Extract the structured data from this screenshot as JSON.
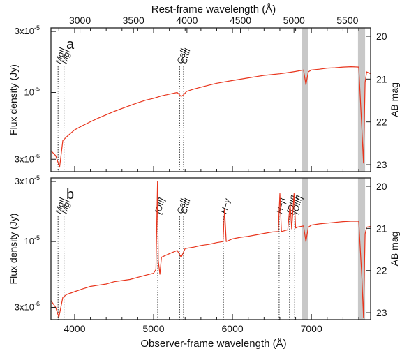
{
  "chart_data": [
    {
      "type": "line",
      "panel_label": "a",
      "xlabel": "Observer-frame wavelength (Å)",
      "x2label": "Rest-frame wavelength (Å)",
      "ylabel": "Flux density (Jy)",
      "y2label": "AB mag",
      "xlim": [
        3700,
        7750
      ],
      "x2_ticks": [
        3000,
        3500,
        4000,
        4500,
        5000,
        5500
      ],
      "x2_tick_labels": [
        "3000",
        "3500",
        "4000",
        "4500",
        "5000",
        "5500"
      ],
      "rest_to_observed_factor": 1.3558,
      "y_scale": "log",
      "ylim": [
        2.4e-06,
        3.2e-05
      ],
      "y_tick_labels": [
        {
          "value": 3e-05,
          "base": "3x10",
          "exp": "-5"
        },
        {
          "value": 1e-05,
          "base": "10",
          "exp": "-5"
        },
        {
          "value": 3e-06,
          "base": "3x10",
          "exp": "-6"
        }
      ],
      "y2_ticks": [
        "20",
        "21",
        "22",
        "23"
      ],
      "series": [
        {
          "color": "#e8341c",
          "x": [
            3700,
            3760,
            3810,
            3850,
            3900,
            3950,
            4000,
            4100,
            4200,
            4300,
            4400,
            4500,
            4600,
            4700,
            4800,
            4900,
            5000,
            5100,
            5200,
            5300,
            5350,
            5380,
            5420,
            5500,
            5600,
            5700,
            5800,
            5900,
            6000,
            6100,
            6200,
            6300,
            6400,
            6500,
            6600,
            6700,
            6800,
            6900,
            6930,
            6960,
            7000,
            7100,
            7200,
            7300,
            7400,
            7500,
            7600,
            7640,
            7660,
            7680,
            7700,
            7750
          ],
          "y": [
            3.5e-06,
            3.2e-06,
            2.6e-06,
            4.2e-06,
            4.5e-06,
            4.8e-06,
            5.1e-06,
            5.5e-06,
            5.9e-06,
            6.3e-06,
            6.7e-06,
            7.1e-06,
            7.5e-06,
            7.9e-06,
            8.3e-06,
            8.7e-06,
            9e-06,
            9.4e-06,
            9.7e-06,
            1e-05,
            9.3e-06,
            9.6e-06,
            1.02e-05,
            1.06e-05,
            1.1e-05,
            1.14e-05,
            1.18e-05,
            1.21e-05,
            1.24e-05,
            1.27e-05,
            1.3e-05,
            1.33e-05,
            1.36e-05,
            1.38e-05,
            1.4e-05,
            1.43e-05,
            1.46e-05,
            1.5e-05,
            1.15e-05,
            1.45e-05,
            1.5e-05,
            1.52e-05,
            1.55e-05,
            1.56e-05,
            1.58e-05,
            1.59e-05,
            1.58e-05,
            5e-06,
            2.8e-06,
            1.2e-05,
            1.45e-05,
            1.4e-05
          ]
        }
      ],
      "shaded_bands": [
        [
          6880,
          6960
        ],
        [
          7590,
          7680
        ]
      ],
      "lines": [
        {
          "label": "MgII",
          "x": 3790
        },
        {
          "label": "MgI",
          "x": 3865
        },
        {
          "label": "CaII",
          "x": 5330
        },
        {
          "label": "CaII",
          "x": 5380
        }
      ]
    },
    {
      "type": "line",
      "panel_label": "b",
      "xlabel": "Observer-frame wavelength (Å)",
      "ylabel": "Flux density (Jy)",
      "y2label": "AB mag",
      "xlim": [
        3700,
        7750
      ],
      "x_ticks": [
        4000,
        5000,
        6000,
        7000
      ],
      "x_tick_labels": [
        "4000",
        "5000",
        "6000",
        "7000"
      ],
      "y_scale": "log",
      "ylim": [
        2.4e-06,
        3.2e-05
      ],
      "y_tick_labels": [
        {
          "value": 3e-05,
          "base": "3x10",
          "exp": "-5"
        },
        {
          "value": 1e-05,
          "base": "10",
          "exp": "-5"
        },
        {
          "value": 3e-06,
          "base": "3x10",
          "exp": "-6"
        }
      ],
      "y2_ticks": [
        "20",
        "21",
        "22",
        "23"
      ],
      "series": [
        {
          "color": "#e8341c",
          "x": [
            3700,
            3760,
            3800,
            3850,
            3900,
            3950,
            4000,
            4100,
            4200,
            4300,
            4400,
            4500,
            4600,
            4700,
            4800,
            4900,
            5000,
            5030,
            5050,
            5060,
            5080,
            5100,
            5200,
            5300,
            5350,
            5400,
            5500,
            5600,
            5700,
            5800,
            5880,
            5900,
            5920,
            6000,
            6100,
            6200,
            6300,
            6400,
            6500,
            6580,
            6600,
            6620,
            6700,
            6730,
            6750,
            6780,
            6800,
            6820,
            6900,
            6930,
            6960,
            7000,
            7100,
            7200,
            7300,
            7400,
            7500,
            7600,
            7640,
            7660,
            7680,
            7700,
            7750
          ],
          "y": [
            3.4e-06,
            3e-06,
            2.5e-06,
            3.6e-06,
            3.8e-06,
            3.9e-06,
            4e-06,
            4.2e-06,
            4.4e-06,
            4.5e-06,
            4.6e-06,
            4.8e-06,
            4.9e-06,
            5e-06,
            5.2e-06,
            5.4e-06,
            5.6e-06,
            6e-06,
            3e-05,
            7e-06,
            5.5e-06,
            7.5e-06,
            8e-06,
            8.5e-06,
            7.5e-06,
            8.8e-06,
            9e-06,
            9.3e-06,
            9.5e-06,
            9.8e-06,
            1e-05,
            1.8e-05,
            1e-05,
            1.05e-05,
            1.08e-05,
            1.1e-05,
            1.13e-05,
            1.16e-05,
            1.19e-05,
            1.2e-05,
            2.4e-05,
            1.2e-05,
            1.24e-05,
            2e-05,
            1.26e-05,
            2.4e-05,
            1.28e-05,
            1.3e-05,
            1.33e-05,
            1e-05,
            1.3e-05,
            1.35e-05,
            1.38e-05,
            1.4e-05,
            1.42e-05,
            1.44e-05,
            1.45e-05,
            1.45e-05,
            5e-06,
            2.5e-06,
            1.15e-05,
            1.3e-05,
            1.32e-05
          ]
        }
      ],
      "shaded_bands": [
        [
          6880,
          6960
        ],
        [
          7590,
          7680
        ]
      ],
      "lines": [
        {
          "label": "MgII",
          "x": 3790
        },
        {
          "label": "MgI",
          "x": 3865
        },
        {
          "label": "[OII]",
          "x": 5053
        },
        {
          "label": "CaII",
          "x": 5330
        },
        {
          "label": "CaII",
          "x": 5380
        },
        {
          "label": "H−γ",
          "x": 5885
        },
        {
          "label": "H−β",
          "x": 6591
        },
        {
          "label": "[OIII]",
          "x": 6723
        },
        {
          "label": "[OIII]",
          "x": 6788
        }
      ]
    }
  ],
  "colors": {
    "spectrum": "#e8341c",
    "band": "#c8c8c8",
    "axis": "#222222"
  }
}
